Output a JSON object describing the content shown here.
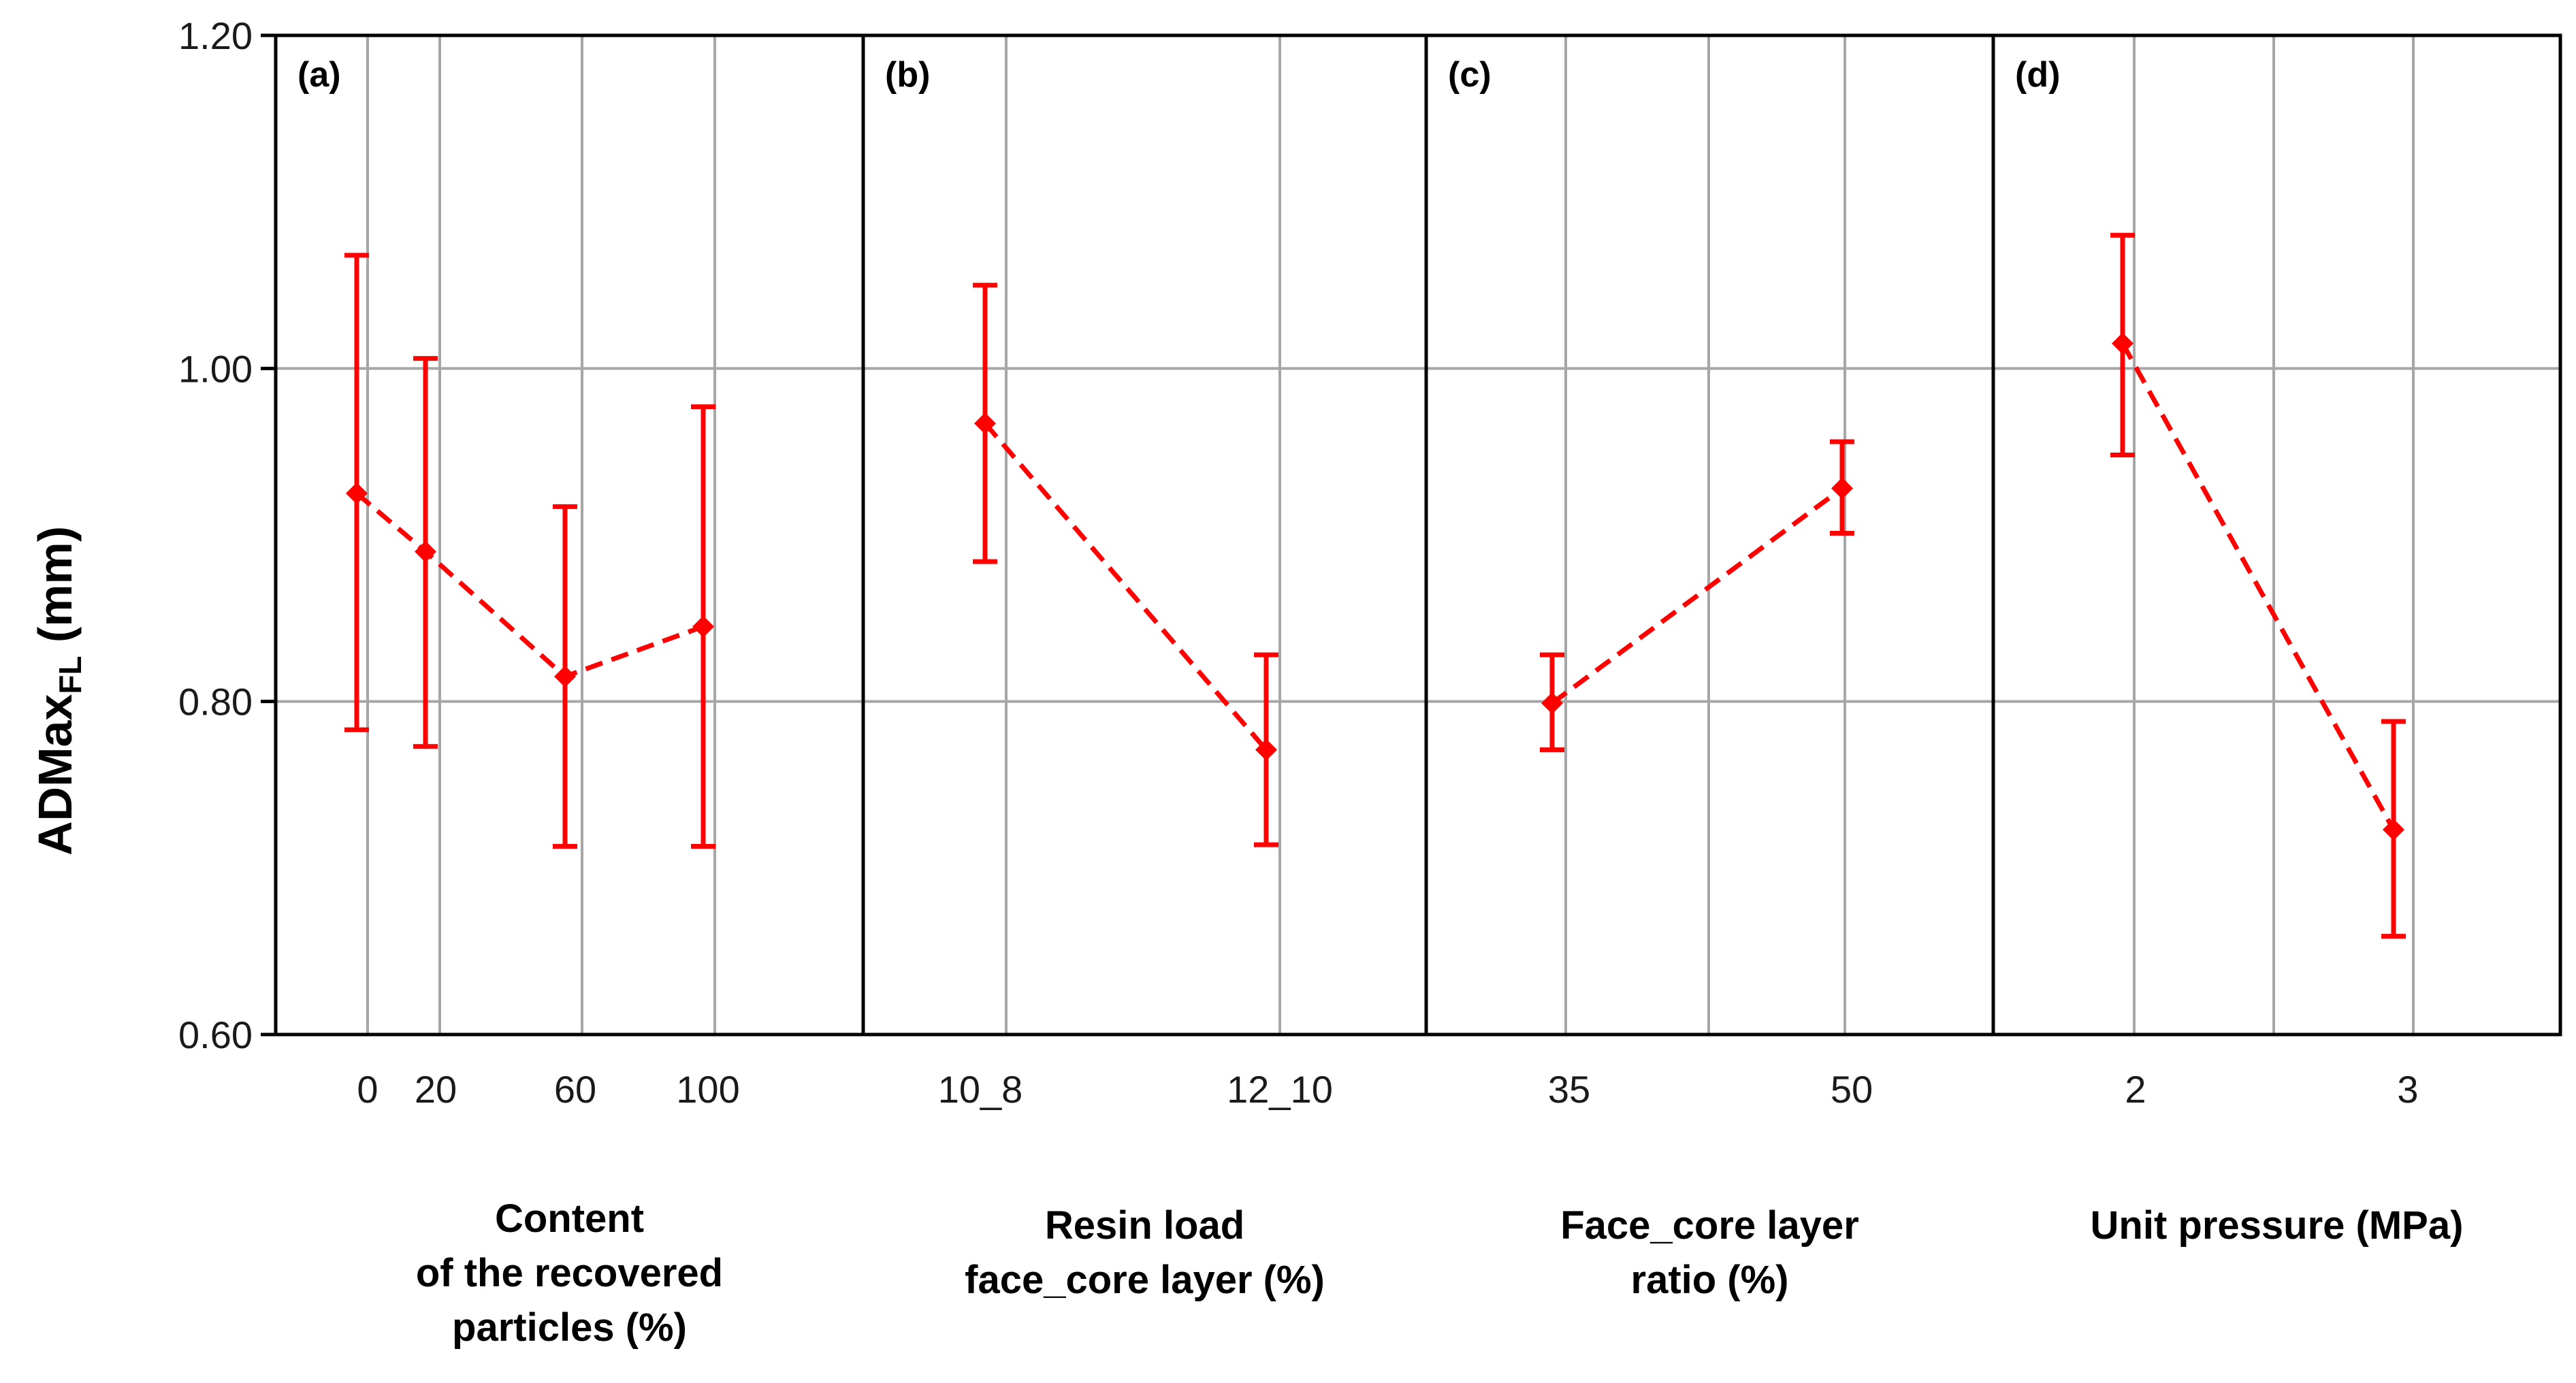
{
  "chart_data": {
    "type": "line",
    "style": "main-effects plot with error bars, dashed connecting line",
    "colors": {
      "series": "#ff0000",
      "grid": "#a6a6a6",
      "frame": "#000000"
    },
    "y_axis": {
      "title_main": "ADMax",
      "title_sub": "FL",
      "title_unit": " (mm)",
      "ylim": [
        0.6,
        1.2
      ],
      "ticks": [
        0.6,
        0.8,
        1.0,
        1.2
      ],
      "tick_labels": [
        "0.60",
        "0.80",
        "1.00",
        "1.20"
      ]
    },
    "grid": true,
    "panels": [
      {
        "tag": "(a)",
        "xlabel_lines": [
          "Content",
          "of the recovered",
          "particles (%)"
        ],
        "categories": [
          "0",
          "20",
          "60",
          "100"
        ],
        "points": [
          {
            "x": "0",
            "mean": 0.925,
            "low": 0.783,
            "high": 1.068
          },
          {
            "x": "20",
            "mean": 0.89,
            "low": 0.773,
            "high": 1.006
          },
          {
            "x": "60",
            "mean": 0.815,
            "low": 0.713,
            "high": 0.917
          },
          {
            "x": "100",
            "mean": 0.845,
            "low": 0.713,
            "high": 0.977
          }
        ]
      },
      {
        "tag": "(b)",
        "xlabel_lines": [
          "Resin load",
          "face_core layer (%)"
        ],
        "categories": [
          "10_8",
          "12_10"
        ],
        "points": [
          {
            "x": "10_8",
            "mean": 0.967,
            "low": 0.884,
            "high": 1.05
          },
          {
            "x": "12_10",
            "mean": 0.771,
            "low": 0.714,
            "high": 0.828
          }
        ]
      },
      {
        "tag": "(c)",
        "xlabel_lines": [
          "Face_core layer",
          "ratio (%)"
        ],
        "categories": [
          "35",
          "50"
        ],
        "points": [
          {
            "x": "35",
            "mean": 0.799,
            "low": 0.771,
            "high": 0.828
          },
          {
            "x": "50",
            "mean": 0.928,
            "low": 0.901,
            "high": 0.956
          }
        ]
      },
      {
        "tag": "(d)",
        "xlabel_lines": [
          "Unit pressure (MPa)"
        ],
        "categories": [
          "2",
          "3"
        ],
        "points": [
          {
            "x": "2",
            "mean": 1.015,
            "low": 0.948,
            "high": 1.08
          },
          {
            "x": "3",
            "mean": 0.723,
            "low": 0.659,
            "high": 0.788
          }
        ]
      }
    ]
  }
}
